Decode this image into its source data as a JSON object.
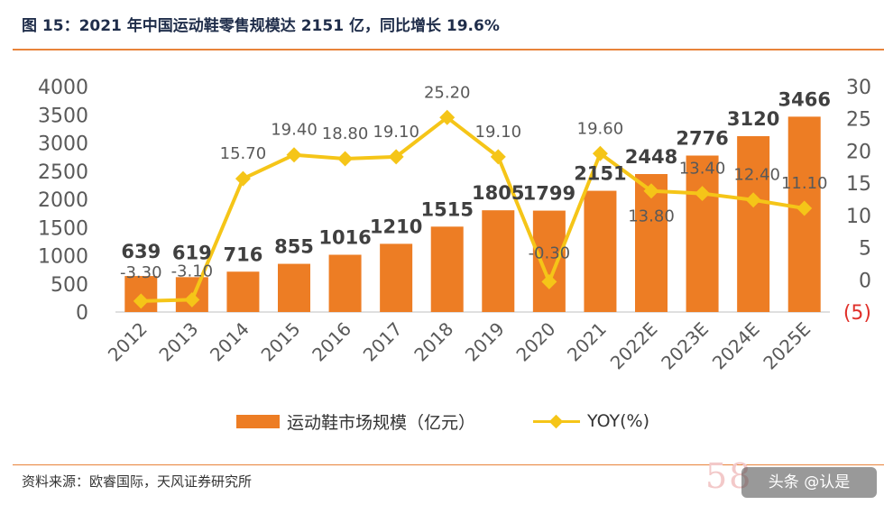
{
  "header": {
    "title": "图 15：2021 年中国运动鞋零售规模达 2151 亿，同比增长 19.6%"
  },
  "footer": {
    "source": "资料来源：欧睿国际，天风证券研究所",
    "watermark": "58",
    "badge": "头条 @认是"
  },
  "chart_data": {
    "type": "bar",
    "categories": [
      "2012",
      "2013",
      "2014",
      "2015",
      "2016",
      "2017",
      "2018",
      "2019",
      "2020",
      "2021",
      "2022E",
      "2023E",
      "2024E",
      "2025E"
    ],
    "series": [
      {
        "name": "运动鞋市场规模（亿元）",
        "type": "bar",
        "axis": "left",
        "values": [
          639,
          619,
          716,
          855,
          1016,
          1210,
          1515,
          1805,
          1799,
          2151,
          2448,
          2776,
          3120,
          3466
        ],
        "labels": [
          "639",
          "619",
          "716",
          "855",
          "1016",
          "1210",
          "1515",
          "1805",
          "1799",
          "2151",
          "2448",
          "2776",
          "3120",
          "3466"
        ],
        "color": "#ed7d24"
      },
      {
        "name": "YOY(%)",
        "type": "line",
        "axis": "right",
        "values": [
          -3.3,
          -3.1,
          15.7,
          19.4,
          18.8,
          19.1,
          25.2,
          19.1,
          -0.3,
          19.6,
          13.8,
          13.4,
          12.4,
          11.1
        ],
        "labels": [
          "-3.30",
          "-3.10",
          "15.70",
          "19.40",
          "18.80",
          "19.10",
          "25.20",
          "19.10",
          "-0.30",
          "19.60",
          "13.80",
          "13.40",
          "12.40",
          "11.10"
        ],
        "color": "#f5c518"
      }
    ],
    "y_left": {
      "ylim": [
        0,
        4000
      ],
      "ticks": [
        "0",
        "500",
        "1000",
        "1500",
        "2000",
        "2500",
        "3000",
        "3500",
        "4000"
      ]
    },
    "y_right": {
      "ylim": [
        -5,
        30
      ],
      "ticks": [
        "(5)",
        "0",
        "5",
        "10",
        "15",
        "20",
        "25",
        "30"
      ],
      "negative_color": "#e0302a"
    },
    "grid": false,
    "legend_position": "bottom"
  }
}
